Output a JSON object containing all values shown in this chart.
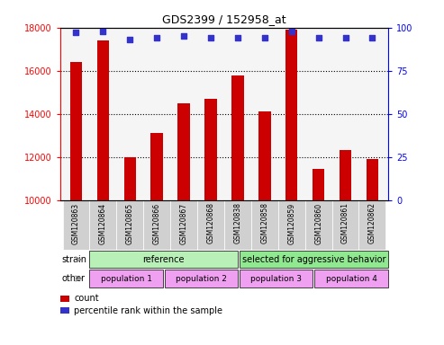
{
  "title": "GDS2399 / 152958_at",
  "samples": [
    "GSM120863",
    "GSM120864",
    "GSM120865",
    "GSM120866",
    "GSM120867",
    "GSM120868",
    "GSM120838",
    "GSM120858",
    "GSM120859",
    "GSM120860",
    "GSM120861",
    "GSM120862"
  ],
  "counts": [
    16400,
    17400,
    12000,
    13100,
    14500,
    14700,
    15800,
    14100,
    17900,
    11450,
    12300,
    11900
  ],
  "percentile_ranks": [
    97,
    98,
    93,
    94,
    95,
    94,
    94,
    94,
    98,
    94,
    94,
    94
  ],
  "bar_color": "#cc0000",
  "dot_color": "#3333cc",
  "ylim_left": [
    10000,
    18000
  ],
  "ylim_right": [
    0,
    100
  ],
  "yticks_left": [
    10000,
    12000,
    14000,
    16000,
    18000
  ],
  "yticks_right": [
    0,
    25,
    50,
    75,
    100
  ],
  "strain_groups": [
    {
      "label": "reference",
      "start": 0,
      "end": 6,
      "color": "#b8f0b8"
    },
    {
      "label": "selected for aggressive behavior",
      "start": 6,
      "end": 12,
      "color": "#90e890"
    }
  ],
  "other_groups": [
    {
      "label": "population 1",
      "start": 0,
      "end": 3,
      "color": "#f0a0f0"
    },
    {
      "label": "population 2",
      "start": 3,
      "end": 6,
      "color": "#f0a0f0"
    },
    {
      "label": "population 3",
      "start": 6,
      "end": 9,
      "color": "#f0a0f0"
    },
    {
      "label": "population 4",
      "start": 9,
      "end": 12,
      "color": "#f0a0f0"
    }
  ],
  "strain_label": "strain",
  "other_label": "other",
  "legend_count_label": "count",
  "legend_percentile_label": "percentile rank within the sample",
  "background_color": "#ffffff",
  "bar_width": 0.45,
  "label_bg": "#d0d0d0",
  "main_bg": "#f5f5f5"
}
